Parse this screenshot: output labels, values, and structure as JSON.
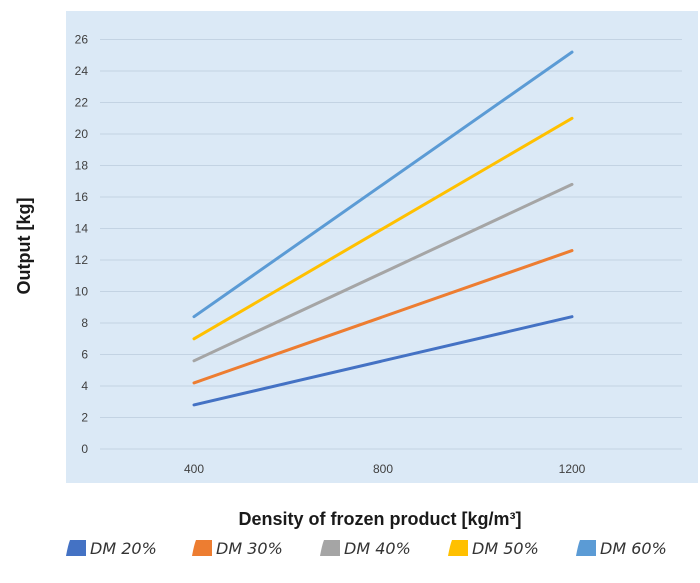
{
  "chart_data": {
    "type": "line",
    "title": "",
    "xlabel": "Density of frozen product [kg/m³]",
    "ylabel": "Output [kg]",
    "x": [
      400,
      1200
    ],
    "x_ticks": [
      "400",
      "800",
      "1200"
    ],
    "y_ticks": [
      "0",
      "2",
      "4",
      "6",
      "8",
      "10",
      "12",
      "14",
      "16",
      "18",
      "20",
      "22",
      "24",
      "26"
    ],
    "ylim": [
      0,
      27
    ],
    "grid": true,
    "legend_position": "bottom",
    "series": [
      {
        "name": "DM 20%",
        "color": "#4472c4",
        "values": [
          2.8,
          8.4
        ]
      },
      {
        "name": "DM 30%",
        "color": "#ed7d31",
        "values": [
          4.2,
          12.6
        ]
      },
      {
        "name": "DM 40%",
        "color": "#a5a5a5",
        "values": [
          5.6,
          16.8
        ]
      },
      {
        "name": "DM 50%",
        "color": "#ffc000",
        "values": [
          7.0,
          21.0
        ]
      },
      {
        "name": "DM 60%",
        "color": "#5b9bd5",
        "values": [
          8.4,
          25.2
        ]
      }
    ]
  },
  "colors": {
    "plot_background": "#dbe9f6",
    "gridline": "#c3d3e3"
  }
}
